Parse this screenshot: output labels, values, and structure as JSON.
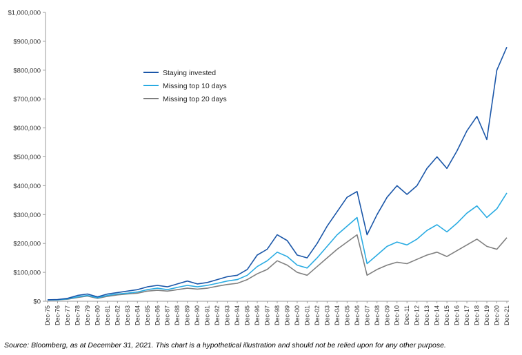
{
  "chart_data": {
    "type": "line",
    "title": "",
    "xlabel": "",
    "ylabel": "",
    "ylim": [
      0,
      1000000
    ],
    "yticks": [
      "$0",
      "$100,000",
      "$200,000",
      "$300,000",
      "$400,000",
      "$500,000",
      "$600,000",
      "$700,000",
      "$800,000",
      "$900,000",
      "$1,000,000"
    ],
    "x_tick_labels": [
      "Dec-75",
      "Dec-76",
      "Dec-77",
      "Dec-78",
      "Dec-79",
      "Dec-80",
      "Dec-81",
      "Dec-82",
      "Dec-83",
      "Dec-84",
      "Dec-85",
      "Dec-86",
      "Dec-87",
      "Dec-88",
      "Dec-89",
      "Dec-90",
      "Dec-91",
      "Dec-92",
      "Dec-93",
      "Dec-94",
      "Dec-95",
      "Dec-96",
      "Dec-97",
      "Dec-98",
      "Dec-99",
      "Dec-00",
      "Dec-01",
      "Dec-02",
      "Dec-03",
      "Dec-04",
      "Dec-05",
      "Dec-06",
      "Dec-07",
      "Dec-08",
      "Dec-09",
      "Dec-10",
      "Dec-11",
      "Dec-12",
      "Dec-13",
      "Dec-14",
      "Dec-15",
      "Dec-16",
      "Dec-17",
      "Dec-18",
      "Dec-19",
      "Dec-20",
      "Dec-21"
    ],
    "x": [
      1975,
      1976,
      1977,
      1978,
      1979,
      1980,
      1981,
      1982,
      1983,
      1984,
      1985,
      1986,
      1987,
      1988,
      1989,
      1990,
      1991,
      1992,
      1993,
      1994,
      1995,
      1996,
      1997,
      1998,
      1999,
      2000,
      2001,
      2002,
      2003,
      2004,
      2005,
      2006,
      2007,
      2008,
      2009,
      2010,
      2011,
      2012,
      2013,
      2014,
      2015,
      2016,
      2017,
      2018,
      2019,
      2020,
      2021
    ],
    "legend_position": "upper-left",
    "grid": false,
    "series": [
      {
        "name": "Staying invested",
        "color": "#1a56a8",
        "values": [
          5000,
          6000,
          10000,
          20000,
          25000,
          15000,
          25000,
          30000,
          35000,
          40000,
          50000,
          55000,
          50000,
          60000,
          70000,
          60000,
          65000,
          75000,
          85000,
          90000,
          110000,
          160000,
          180000,
          230000,
          210000,
          160000,
          150000,
          200000,
          260000,
          310000,
          360000,
          380000,
          230000,
          300000,
          360000,
          400000,
          370000,
          400000,
          460000,
          500000,
          460000,
          520000,
          590000,
          640000,
          560000,
          800000,
          880000
        ]
      },
      {
        "name": "Missing top 10 days",
        "color": "#29abe2",
        "values": [
          4500,
          5000,
          8000,
          15000,
          20000,
          12000,
          20000,
          25000,
          28000,
          32000,
          40000,
          45000,
          40000,
          48000,
          55000,
          50000,
          55000,
          62000,
          70000,
          75000,
          90000,
          120000,
          140000,
          170000,
          155000,
          125000,
          115000,
          150000,
          190000,
          230000,
          260000,
          290000,
          130000,
          160000,
          190000,
          205000,
          195000,
          215000,
          245000,
          265000,
          240000,
          270000,
          305000,
          330000,
          290000,
          320000,
          375000
        ]
      },
      {
        "name": "Missing top 20 days",
        "color": "#7f7f7f",
        "values": [
          4000,
          4500,
          7000,
          13000,
          18000,
          10000,
          17000,
          22000,
          25000,
          28000,
          35000,
          38000,
          35000,
          40000,
          45000,
          42000,
          45000,
          52000,
          58000,
          62000,
          75000,
          95000,
          110000,
          140000,
          125000,
          100000,
          90000,
          120000,
          150000,
          180000,
          205000,
          230000,
          90000,
          110000,
          125000,
          135000,
          130000,
          145000,
          160000,
          170000,
          155000,
          175000,
          195000,
          215000,
          190000,
          180000,
          220000
        ]
      }
    ],
    "source_note": "Source: Bloomberg, as at December 31, 2021. This chart is a hypothetical illustration and should not be relied upon for any other purpose."
  }
}
